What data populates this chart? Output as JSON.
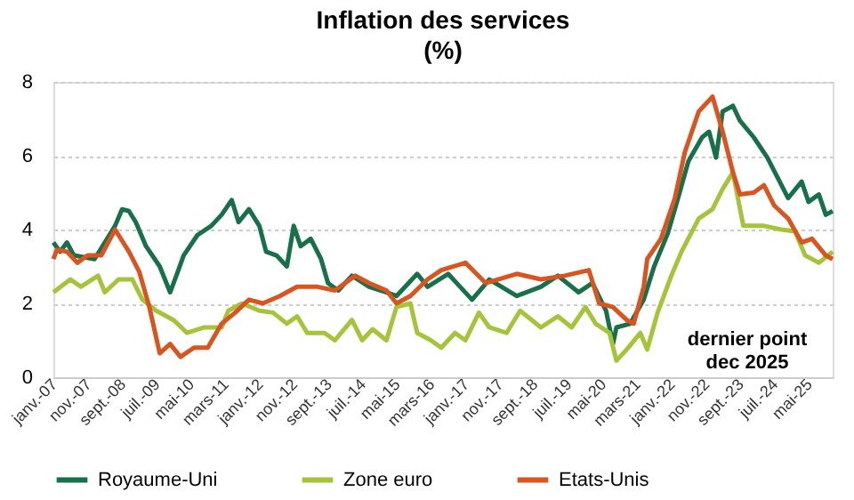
{
  "chart_data": {
    "type": "line",
    "title": "Inflation des services",
    "subtitle": "(%)",
    "xlim": [
      "2007-01",
      "2025-12"
    ],
    "xticks": [
      {
        "value": "2007-01",
        "label": "janv.-07"
      },
      {
        "value": "2007-11",
        "label": "nov.-07"
      },
      {
        "value": "2008-09",
        "label": "sept.-08"
      },
      {
        "value": "2009-07",
        "label": "juil.-09"
      },
      {
        "value": "2010-05",
        "label": "mai-10"
      },
      {
        "value": "2011-03",
        "label": "mars-11"
      },
      {
        "value": "2012-01",
        "label": "janv.-12"
      },
      {
        "value": "2012-11",
        "label": "nov.-12"
      },
      {
        "value": "2013-09",
        "label": "sept.-13"
      },
      {
        "value": "2014-07",
        "label": "juil.-14"
      },
      {
        "value": "2015-05",
        "label": "mai-15"
      },
      {
        "value": "2016-03",
        "label": "mars-16"
      },
      {
        "value": "2017-01",
        "label": "janv.-17"
      },
      {
        "value": "2017-11",
        "label": "nov.-17"
      },
      {
        "value": "2018-09",
        "label": "sept.-18"
      },
      {
        "value": "2019-07",
        "label": "juil.-19"
      },
      {
        "value": "2020-05",
        "label": "mai-20"
      },
      {
        "value": "2021-03",
        "label": "mars-21"
      },
      {
        "value": "2022-01",
        "label": "janv.-22"
      },
      {
        "value": "2022-11",
        "label": "nov.-22"
      },
      {
        "value": "2023-09",
        "label": "sept.-23"
      },
      {
        "value": "2024-07",
        "label": "juil.-24"
      },
      {
        "value": "2025-05",
        "label": "mai-25"
      }
    ],
    "ylim": [
      0,
      8
    ],
    "yticks": [
      0,
      2,
      4,
      6,
      8
    ],
    "grid": "y",
    "legend": "bottom",
    "line_style": "solid",
    "marker": "none",
    "annotations": [
      "dernier point\ndec 2025"
    ],
    "series": [
      {
        "name": "Royaume-Uni",
        "color": "#17704a",
        "x": [
          "2007-01",
          "2007-03",
          "2007-05",
          "2007-07",
          "2008-01",
          "2008-04",
          "2008-07",
          "2008-09",
          "2008-11",
          "2009-01",
          "2009-04",
          "2009-08",
          "2009-11",
          "2010-01",
          "2010-03",
          "2010-07",
          "2010-11",
          "2011-02",
          "2011-05",
          "2011-07",
          "2011-10",
          "2012-01",
          "2012-03",
          "2012-06",
          "2012-09",
          "2012-11",
          "2013-01",
          "2013-04",
          "2013-07",
          "2013-09",
          "2013-12",
          "2014-04",
          "2014-09",
          "2015-02",
          "2015-05",
          "2015-11",
          "2016-02",
          "2016-08",
          "2017-03",
          "2017-08",
          "2018-04",
          "2018-11",
          "2019-04",
          "2019-10",
          "2020-02",
          "2020-06",
          "2020-08",
          "2020-09",
          "2021-01",
          "2021-05",
          "2021-08",
          "2021-12",
          "2022-03",
          "2022-06",
          "2022-10",
          "2022-12",
          "2023-02",
          "2023-04",
          "2023-07",
          "2023-09",
          "2024-01",
          "2024-05",
          "2024-08",
          "2024-11",
          "2025-03",
          "2025-05",
          "2025-08",
          "2025-10",
          "2025-12"
        ],
        "values": [
          3.65,
          3.4,
          3.65,
          3.3,
          3.2,
          3.65,
          4.1,
          4.55,
          4.5,
          4.2,
          3.55,
          3.0,
          2.3,
          2.8,
          3.3,
          3.85,
          4.1,
          4.4,
          4.8,
          4.2,
          4.55,
          4.1,
          3.4,
          3.3,
          3.0,
          4.1,
          3.55,
          3.75,
          3.2,
          2.55,
          2.35,
          2.75,
          2.45,
          2.3,
          2.2,
          2.8,
          2.45,
          2.8,
          2.1,
          2.65,
          2.2,
          2.45,
          2.75,
          2.3,
          2.55,
          1.8,
          0.9,
          1.35,
          1.45,
          2.1,
          3.0,
          3.9,
          4.85,
          5.85,
          6.5,
          6.65,
          5.95,
          7.2,
          7.35,
          6.95,
          6.5,
          5.95,
          5.4,
          4.85,
          5.3,
          4.75,
          4.95,
          4.4,
          4.5
        ]
      },
      {
        "name": "Zone euro",
        "color": "#a5c43a",
        "x": [
          "2007-01",
          "2007-06",
          "2007-09",
          "2008-02",
          "2008-04",
          "2008-08",
          "2008-12",
          "2009-03",
          "2009-07",
          "2009-12",
          "2010-04",
          "2010-09",
          "2011-02",
          "2011-04",
          "2011-08",
          "2012-01",
          "2012-05",
          "2012-09",
          "2012-12",
          "2013-03",
          "2013-08",
          "2013-11",
          "2014-04",
          "2014-07",
          "2014-10",
          "2015-02",
          "2015-05",
          "2015-09",
          "2015-11",
          "2016-03",
          "2016-06",
          "2016-10",
          "2017-01",
          "2017-05",
          "2017-08",
          "2018-01",
          "2018-05",
          "2018-11",
          "2019-04",
          "2019-08",
          "2019-12",
          "2020-03",
          "2020-07",
          "2020-09",
          "2020-12",
          "2021-04",
          "2021-06",
          "2021-09",
          "2022-01",
          "2022-04",
          "2022-09",
          "2023-01",
          "2023-04",
          "2023-07",
          "2023-10",
          "2024-04",
          "2024-09",
          "2025-01",
          "2025-04",
          "2025-08",
          "2025-12"
        ],
        "values": [
          2.3,
          2.65,
          2.45,
          2.75,
          2.3,
          2.65,
          2.65,
          2.1,
          1.8,
          1.55,
          1.2,
          1.35,
          1.35,
          1.8,
          2.0,
          1.8,
          1.75,
          1.45,
          1.65,
          1.2,
          1.2,
          1.0,
          1.55,
          1.0,
          1.3,
          1.0,
          1.9,
          2.0,
          1.2,
          1.0,
          0.8,
          1.2,
          1.0,
          1.75,
          1.35,
          1.2,
          1.8,
          1.35,
          1.65,
          1.35,
          1.9,
          1.45,
          1.2,
          0.45,
          0.75,
          1.2,
          0.75,
          1.75,
          2.75,
          3.4,
          4.3,
          4.55,
          5.1,
          5.55,
          4.1,
          4.1,
          4.0,
          3.95,
          3.3,
          3.1,
          3.4
        ]
      },
      {
        "name": "Etats-Unis",
        "color": "#d9541e",
        "x": [
          "2007-01",
          "2007-02",
          "2007-05",
          "2007-08",
          "2007-11",
          "2008-03",
          "2008-07",
          "2008-11",
          "2009-02",
          "2009-05",
          "2009-08",
          "2009-11",
          "2010-02",
          "2010-06",
          "2010-10",
          "2011-02",
          "2011-06",
          "2011-10",
          "2012-02",
          "2012-07",
          "2012-12",
          "2013-06",
          "2013-11",
          "2014-05",
          "2014-09",
          "2015-02",
          "2015-05",
          "2015-09",
          "2016-02",
          "2016-06",
          "2017-01",
          "2017-07",
          "2018-04",
          "2018-11",
          "2019-06",
          "2020-01",
          "2020-04",
          "2020-08",
          "2020-12",
          "2021-02",
          "2021-05",
          "2021-06",
          "2021-10",
          "2022-02",
          "2022-05",
          "2022-09",
          "2023-01",
          "2023-04",
          "2023-07",
          "2023-09",
          "2024-01",
          "2024-04",
          "2024-07",
          "2024-11",
          "2025-03",
          "2025-06",
          "2025-10",
          "2025-12"
        ],
        "values": [
          3.2,
          3.45,
          3.4,
          3.1,
          3.3,
          3.3,
          4.0,
          3.4,
          2.85,
          1.9,
          0.65,
          0.9,
          0.55,
          0.8,
          0.8,
          1.45,
          1.75,
          2.1,
          2.0,
          2.2,
          2.45,
          2.45,
          2.35,
          2.75,
          2.55,
          2.35,
          2.0,
          2.2,
          2.65,
          2.9,
          3.1,
          2.55,
          2.8,
          2.65,
          2.75,
          2.9,
          2.0,
          1.9,
          1.55,
          1.45,
          2.45,
          3.2,
          3.75,
          4.85,
          6.1,
          7.2,
          7.6,
          6.65,
          5.55,
          4.95,
          5.0,
          5.2,
          4.65,
          4.3,
          3.65,
          3.75,
          3.3,
          3.2
        ]
      }
    ]
  }
}
